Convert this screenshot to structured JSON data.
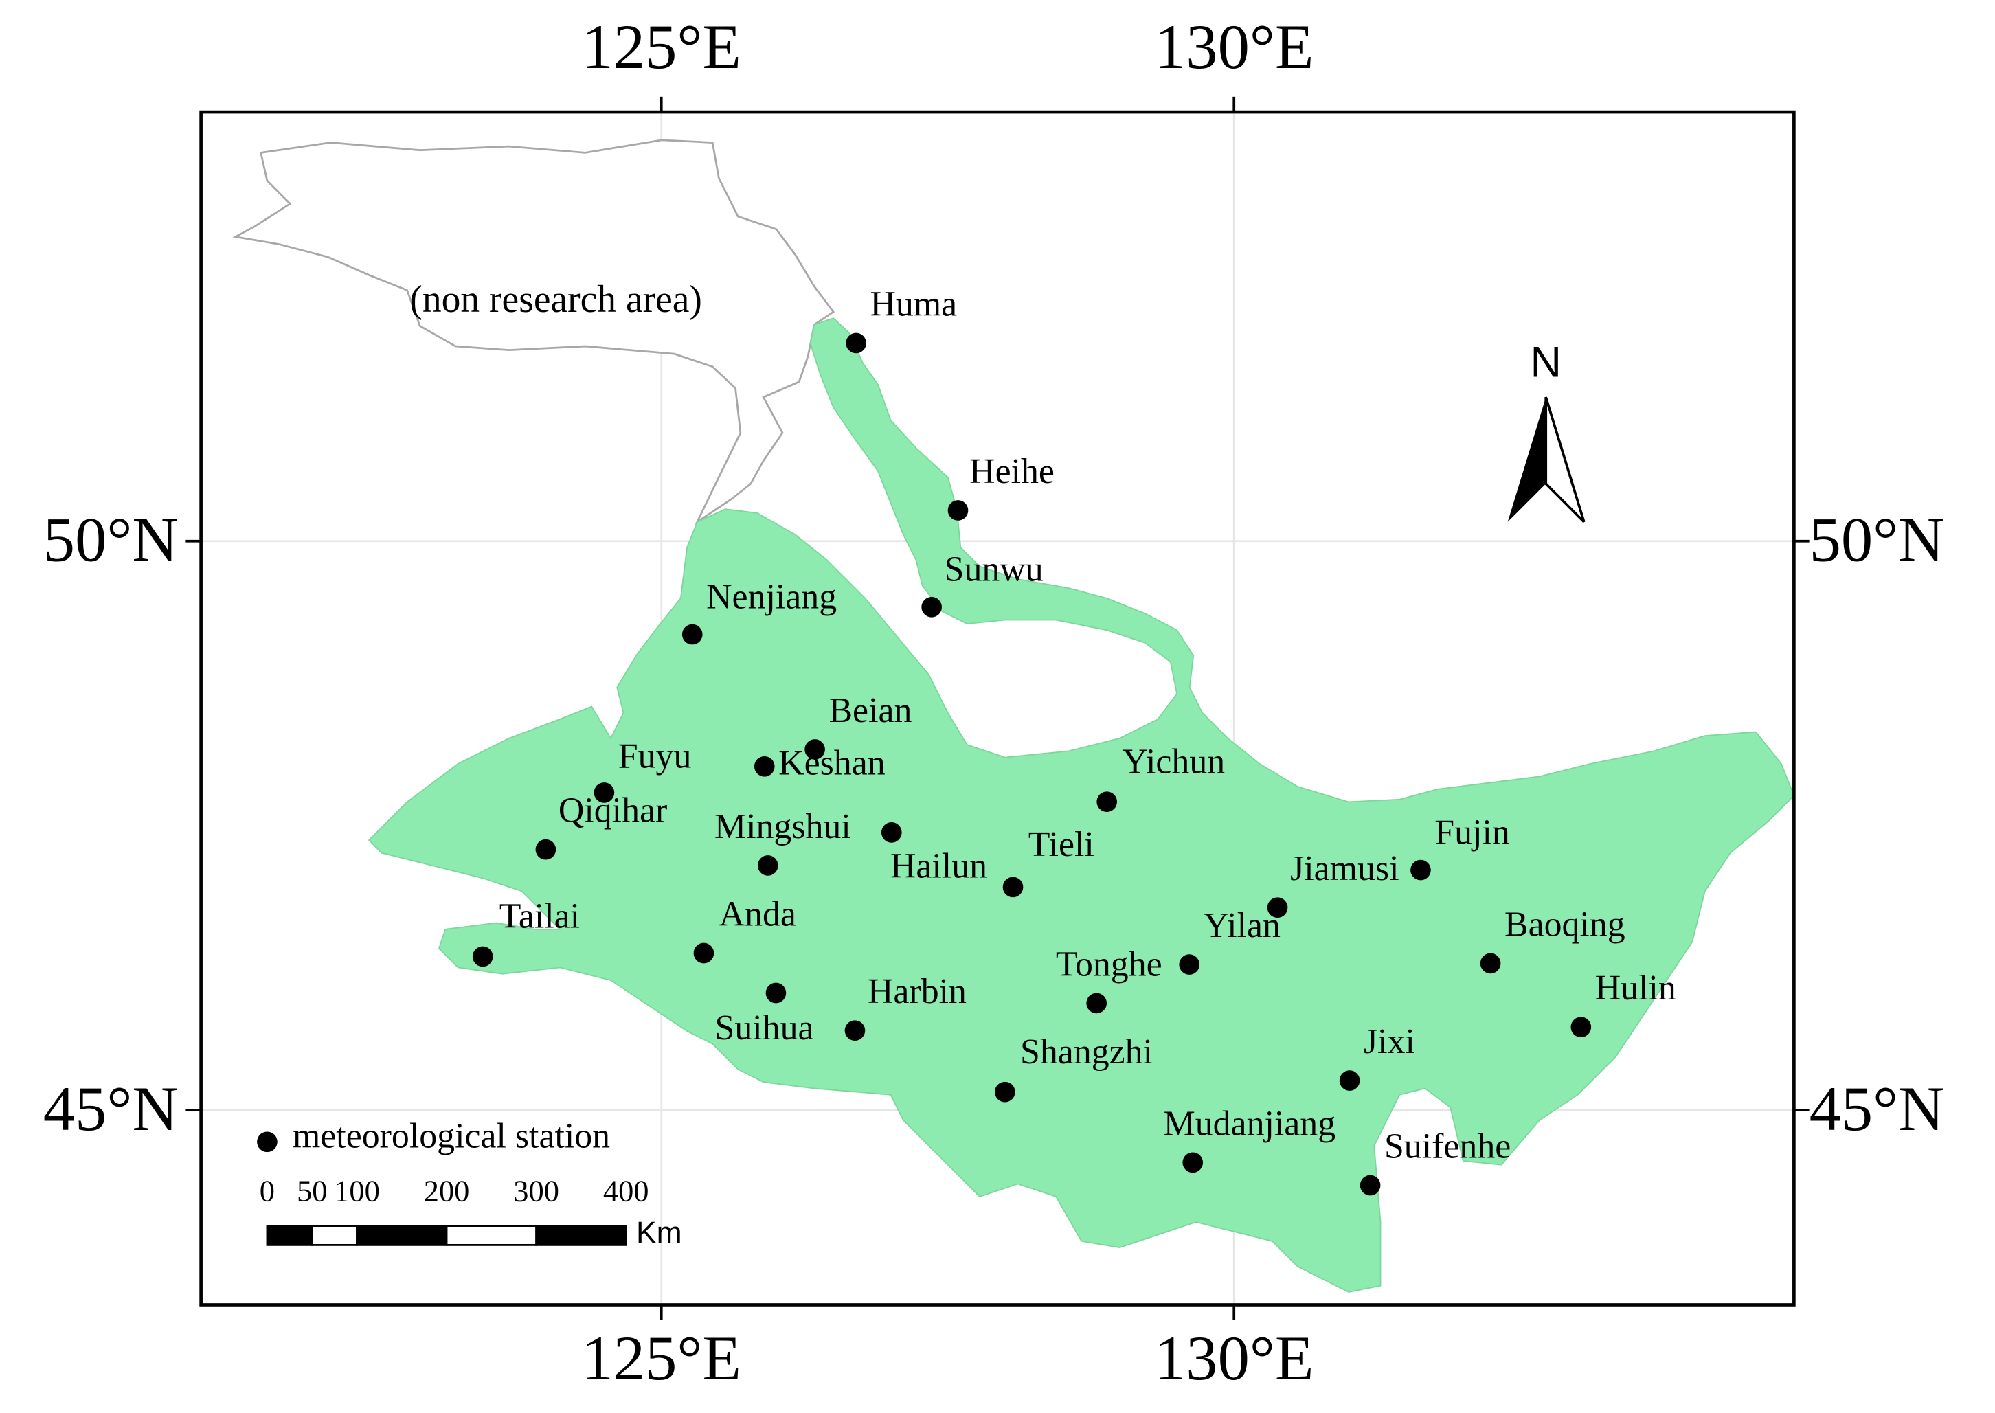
{
  "map": {
    "xlim": [
      120.98,
      134.89
    ],
    "ylim": [
      43.29,
      53.77
    ],
    "lon_ticks": [
      {
        "value": 125,
        "label": "125°E"
      },
      {
        "value": 130,
        "label": "130°E"
      }
    ],
    "lat_ticks": [
      {
        "value": 50,
        "label": "50°N"
      },
      {
        "value": 45,
        "label": "45°N"
      }
    ],
    "area_label": "(non research area)",
    "north_label": "N",
    "legend": "meteorological station",
    "scale_bar": {
      "ticks": [
        0,
        50,
        100,
        200,
        300,
        400
      ],
      "unit": "Km"
    },
    "stations": [
      {
        "name": "Huma",
        "lon": 126.7,
        "lat": 51.74
      },
      {
        "name": "Heihe",
        "lon": 127.59,
        "lat": 50.27
      },
      {
        "name": "Sunwu",
        "lon": 127.36,
        "lat": 49.42
      },
      {
        "name": "Nenjiang",
        "lon": 125.27,
        "lat": 49.18
      },
      {
        "name": "Beian",
        "lon": 126.34,
        "lat": 48.17
      },
      {
        "name": "Keshan",
        "lon": 125.9,
        "lat": 48.02
      },
      {
        "name": "Fuyu",
        "lon": 124.5,
        "lat": 47.79
      },
      {
        "name": "Qiqihar",
        "lon": 123.99,
        "lat": 47.29
      },
      {
        "name": "Mingshui",
        "lon": 125.93,
        "lat": 47.15
      },
      {
        "name": "Hailun",
        "lon": 127.01,
        "lat": 47.44
      },
      {
        "name": "Tieli",
        "lon": 128.07,
        "lat": 46.96
      },
      {
        "name": "Yichun",
        "lon": 128.89,
        "lat": 47.71
      },
      {
        "name": "Jiamusi",
        "lon": 130.38,
        "lat": 46.78
      },
      {
        "name": "Fujin",
        "lon": 131.63,
        "lat": 47.11
      },
      {
        "name": "Tailai",
        "lon": 123.44,
        "lat": 46.35
      },
      {
        "name": "Anda",
        "lon": 125.37,
        "lat": 46.38
      },
      {
        "name": "Suihua",
        "lon": 126.0,
        "lat": 46.03
      },
      {
        "name": "Harbin",
        "lon": 126.69,
        "lat": 45.7
      },
      {
        "name": "Yilan",
        "lon": 129.61,
        "lat": 46.28
      },
      {
        "name": "Tonghe",
        "lon": 128.8,
        "lat": 45.94
      },
      {
        "name": "Baoqing",
        "lon": 132.24,
        "lat": 46.29
      },
      {
        "name": "Hulin",
        "lon": 133.03,
        "lat": 45.73
      },
      {
        "name": "Shangzhi",
        "lon": 128.0,
        "lat": 45.16
      },
      {
        "name": "Jixi",
        "lon": 131.01,
        "lat": 45.26
      },
      {
        "name": "Mudanjiang",
        "lon": 129.64,
        "lat": 44.54
      },
      {
        "name": "Suifenhe",
        "lon": 131.19,
        "lat": 44.34
      }
    ]
  }
}
